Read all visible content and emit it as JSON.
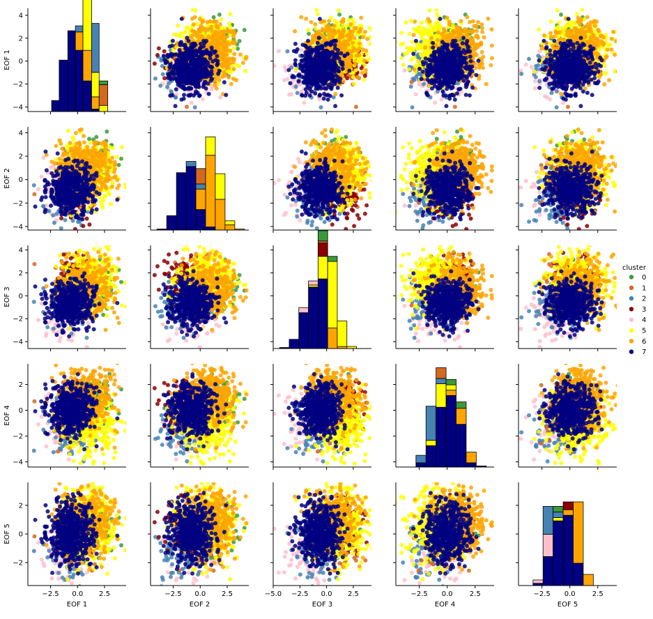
{
  "chart_data": {
    "type": "scatter",
    "layout": "pairplot",
    "variables": [
      "EOF 1",
      "EOF 2",
      "EOF 3",
      "EOF 4",
      "EOF 5"
    ],
    "x_ticks": [
      {
        "values": [
          -2.5,
          0.0,
          2.5
        ],
        "labels": [
          "−2.5",
          "0.0",
          "2.5"
        ],
        "range": [
          -4.6,
          4.5
        ]
      },
      {
        "values": [
          -2.5,
          0.0,
          2.5
        ],
        "labels": [
          "−2.5",
          "0.0",
          "2.5"
        ],
        "range": [
          -4.6,
          4.5
        ]
      },
      {
        "values": [
          -5.0,
          -2.5,
          0.0,
          2.5
        ],
        "labels": [
          "−5.0",
          "−2.5",
          "0.0",
          "2.5"
        ],
        "range": [
          -5.0,
          4.2
        ]
      },
      {
        "values": [
          -2.5,
          0.0,
          2.5
        ],
        "labels": [
          "−2.5",
          "0.0",
          "2.5"
        ],
        "range": [
          -4.6,
          4.2
        ]
      },
      {
        "values": [
          -2.5,
          0.0,
          2.5
        ],
        "labels": [
          "−2.5",
          "0.0",
          "2.5"
        ],
        "range": [
          -4.6,
          4.2
        ]
      }
    ],
    "y_ticks": [
      {
        "values": [
          4,
          2,
          0,
          -2,
          -4
        ],
        "labels": [
          "4",
          "2",
          "0",
          "−2",
          "−4"
        ],
        "range": [
          -4.4,
          4.6
        ]
      },
      {
        "values": [
          4,
          2,
          0,
          -2,
          -4
        ],
        "labels": [
          "4",
          "2",
          "0",
          "−2",
          "−4"
        ],
        "range": [
          -4.3,
          4.5
        ]
      },
      {
        "values": [
          4,
          2,
          0,
          -2,
          -4
        ],
        "labels": [
          "4",
          "2",
          "0",
          "−2",
          "−4"
        ],
        "range": [
          -4.6,
          4.4
        ]
      },
      {
        "values": [
          2,
          0,
          -2,
          -4
        ],
        "labels": [
          "2",
          "0",
          "−2",
          "−4"
        ],
        "range": [
          -4.4,
          3.6
        ]
      },
      {
        "values": [
          2,
          0,
          -2
        ],
        "labels": [
          "2",
          "0",
          "−2"
        ],
        "range": [
          -3.6,
          3.6
        ]
      }
    ],
    "legend": {
      "title": "cluster",
      "position": "right",
      "entries": [
        {
          "label": "0",
          "color": "#3a9a3a"
        },
        {
          "label": "1",
          "color": "#d2691e"
        },
        {
          "label": "2",
          "color": "#4682b4"
        },
        {
          "label": "3",
          "color": "#8b0000"
        },
        {
          "label": "4",
          "color": "#ffc0cb"
        },
        {
          "label": "5",
          "color": "#ffff00"
        },
        {
          "label": "6",
          "color": "#ffa500"
        },
        {
          "label": "7",
          "color": "#000080"
        }
      ]
    },
    "clusters": [
      {
        "id": "0",
        "color": "#3a9a3a",
        "center": [
          1.8,
          1.6,
          0.7,
          0.9,
          0.4
        ],
        "spread": 0.9
      },
      {
        "id": "1",
        "color": "#d2691e",
        "center": [
          -0.6,
          0.3,
          1.3,
          -0.3,
          0.0
        ],
        "spread": 1.0
      },
      {
        "id": "2",
        "color": "#4682b4",
        "center": [
          -0.9,
          -1.6,
          -1.0,
          -1.5,
          -1.2
        ],
        "spread": 1.1
      },
      {
        "id": "3",
        "color": "#8b0000",
        "center": [
          -0.2,
          -1.6,
          1.6,
          0.5,
          0.6
        ],
        "spread": 0.9
      },
      {
        "id": "4",
        "color": "#ffc0cb",
        "center": [
          -1.4,
          -0.6,
          -1.6,
          -0.7,
          -1.3
        ],
        "spread": 1.1
      },
      {
        "id": "5",
        "color": "#ffff00",
        "center": [
          1.0,
          0.6,
          1.3,
          -0.9,
          0.6
        ],
        "spread": 1.25
      },
      {
        "id": "6",
        "color": "#ffa500",
        "center": [
          0.8,
          1.0,
          0.6,
          0.9,
          0.9
        ],
        "spread": 1.25
      },
      {
        "id": "7",
        "color": "#000080",
        "center": [
          -0.6,
          -0.8,
          -0.6,
          0.0,
          0.0
        ],
        "spread": 1.0
      }
    ],
    "histograms": [
      {
        "bins": [
          -3.1,
          -2.4,
          -1.7,
          -0.9,
          -0.2,
          0.5,
          1.3,
          2.0,
          2.8
        ],
        "stacks": [
          [
            0,
            0,
            0,
            0,
            0,
            0,
            0,
            0.03
          ],
          [
            0,
            0,
            0,
            0,
            0,
            0,
            0,
            0.17
          ],
          [
            0,
            0,
            0,
            0,
            0.05,
            0.2,
            0.4,
            0
          ],
          [
            0,
            0,
            0,
            0,
            0,
            0,
            0,
            0
          ],
          [
            0,
            0,
            0,
            0,
            0,
            0,
            0,
            0
          ],
          [
            0,
            0,
            0,
            0,
            0,
            0.45,
            0.2,
            0.05
          ],
          [
            0,
            0,
            0,
            0,
            0.15,
            0.25,
            0.1,
            0
          ],
          [
            0,
            0.09,
            0.42,
            0.66,
            0.5,
            0.25,
            0.02,
            0
          ]
        ]
      },
      {
        "bins": [
          -4.0,
          -3.1,
          -2.2,
          -1.3,
          -0.4,
          0.5,
          1.4,
          2.3,
          3.2,
          4.1
        ],
        "stacks": [
          [
            0,
            0,
            0,
            0,
            0,
            0,
            0,
            0,
            0
          ],
          [
            0,
            0,
            0,
            0,
            0.15,
            0,
            0,
            0,
            0
          ],
          [
            0,
            0,
            0,
            0.05,
            0.05,
            0,
            0,
            0,
            0
          ],
          [
            0,
            0,
            0,
            0,
            0,
            0,
            0,
            0,
            0
          ],
          [
            0,
            0,
            0,
            0,
            0,
            0,
            0,
            0,
            0
          ],
          [
            0,
            0,
            0,
            0,
            0,
            0.18,
            0.25,
            0.04,
            0
          ],
          [
            0,
            0,
            0,
            0,
            0.2,
            0.7,
            0.3,
            0.05,
            0.01
          ],
          [
            0.01,
            0.14,
            0.56,
            0.62,
            0.2,
            0.03,
            0,
            0,
            0
          ]
        ]
      },
      {
        "bins": [
          -4.4,
          -3.5,
          -2.6,
          -1.7,
          -0.8,
          0.1,
          1.0,
          1.9,
          2.8,
          3.7
        ],
        "stacks": [
          [
            0,
            0,
            0,
            0,
            0.1,
            0.05,
            0,
            0,
            0
          ],
          [
            0,
            0,
            0,
            0,
            0.02,
            0,
            0,
            0,
            0
          ],
          [
            0,
            0,
            0,
            0,
            0,
            0,
            0,
            0,
            0
          ],
          [
            0,
            0,
            0,
            0,
            0.13,
            0,
            0,
            0,
            0
          ],
          [
            0,
            0,
            0.05,
            0.04,
            0,
            0,
            0,
            0,
            0
          ],
          [
            0,
            0,
            0,
            0.02,
            0.22,
            0.65,
            0.25,
            0.02,
            0
          ],
          [
            0,
            0,
            0,
            0,
            0,
            0.2,
            0.02,
            0,
            0
          ],
          [
            0.01,
            0.09,
            0.35,
            0.6,
            0.68,
            0,
            0,
            0,
            0
          ]
        ]
      },
      {
        "bins": [
          -3.7,
          -2.8,
          -1.9,
          -1.0,
          -0.1,
          0.8,
          1.7,
          2.6,
          3.5
        ],
        "stacks": [
          [
            0,
            0,
            0,
            0,
            0.05,
            0.06,
            0,
            0
          ],
          [
            0,
            0,
            0,
            0.1,
            0,
            0,
            0,
            0
          ],
          [
            0,
            0.07,
            0.32,
            0.05,
            0,
            0,
            0,
            0
          ],
          [
            0,
            0,
            0,
            0,
            0,
            0,
            0,
            0
          ],
          [
            0,
            0,
            0,
            0,
            0,
            0,
            0,
            0
          ],
          [
            0,
            0,
            0.05,
            0.22,
            0.05,
            0,
            0,
            0
          ],
          [
            0,
            0,
            0,
            0,
            0.05,
            0.15,
            0.1,
            0
          ],
          [
            0,
            0.04,
            0.2,
            0.56,
            0.67,
            0.4,
            0.04,
            0.01
          ]
        ]
      },
      {
        "bins": [
          -3.3,
          -2.4,
          -1.5,
          -0.6,
          0.3,
          1.2,
          2.1,
          3.0
        ],
        "stacks": [
          [
            0,
            0,
            0.05,
            0.0,
            0,
            0,
            0
          ],
          [
            0,
            0,
            0.0,
            0.0,
            0,
            0,
            0
          ],
          [
            0,
            0.25,
            0.05,
            0,
            0,
            0,
            0
          ],
          [
            0,
            0,
            0,
            0.07,
            0,
            0,
            0
          ],
          [
            0.03,
            0.2,
            0,
            0,
            0,
            0,
            0
          ],
          [
            0,
            0,
            0.03,
            0,
            0,
            0,
            0
          ],
          [
            0,
            0,
            0,
            0.05,
            0.55,
            0.1,
            0
          ],
          [
            0.02,
            0.26,
            0.58,
            0.63,
            0.2,
            0,
            0
          ]
        ]
      }
    ],
    "hist_max": [
      0.82,
      0.98,
      0.98,
      0.94,
      0.9
    ]
  }
}
